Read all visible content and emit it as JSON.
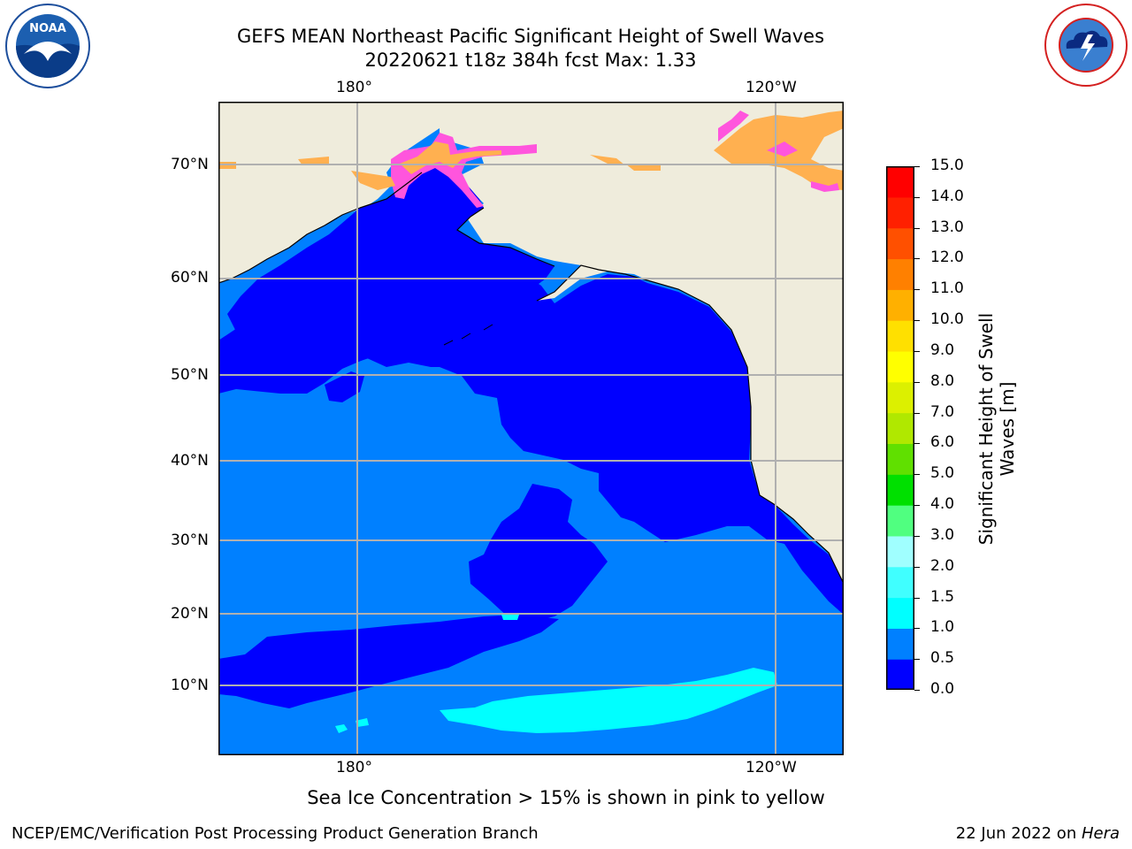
{
  "header": {
    "title_line1": "GEFS MEAN Northeast Pacific Significant Height of Swell Waves",
    "title_line2": "20220621 t18z 384h fcst   Max: 1.33"
  },
  "logos": {
    "left": "NOAA",
    "left_ring": "NATIONAL OCEANIC AND ATMOSPHERIC ADMINISTRATION · U.S. DEPARTMENT OF COMMERCE",
    "right_ring": "NATIONAL WEATHER SERVICE"
  },
  "map": {
    "lon_labels_top": [
      "180°",
      "120°W"
    ],
    "lon_labels_bottom": [
      "180°",
      "120°W"
    ],
    "lat_labels": [
      "70°N",
      "60°N",
      "50°N",
      "40°N",
      "30°N",
      "20°N",
      "10°N"
    ],
    "colors": {
      "land": "#efecdc",
      "swell_0_05": "#0000ff",
      "swell_05_10": "#0080ff",
      "swell_10_15": "#00ffff",
      "ice_edge": "#ff55dd",
      "ice_core": "#ffb050"
    }
  },
  "colorbar": {
    "label_line1": "Significant Height of Swell",
    "label_line2": "Waves [m]",
    "ticks": [
      "15.0",
      "14.0",
      "13.0",
      "12.0",
      "11.0",
      "10.0",
      "9.0",
      "8.0",
      "7.0",
      "6.0",
      "5.0",
      "4.0",
      "3.0",
      "2.0",
      "1.5",
      "1.0",
      "0.5",
      "0.0"
    ],
    "colors": [
      "#0000ff",
      "#0080ff",
      "#00ffff",
      "#40ffff",
      "#a0ffff",
      "#50ff80",
      "#00e000",
      "#60e000",
      "#b0e800",
      "#dcf000",
      "#ffff00",
      "#ffe000",
      "#ffb000",
      "#ff8000",
      "#ff5000",
      "#ff2000",
      "#ff0000"
    ]
  },
  "notes": {
    "sea_ice": "Sea Ice Concentration > 15% is shown in pink to yellow"
  },
  "footer": {
    "left": "NCEP/EMC/Verification Post Processing Product Generation Branch",
    "right_date": "22 Jun 2022 on ",
    "right_host": "Hera"
  }
}
